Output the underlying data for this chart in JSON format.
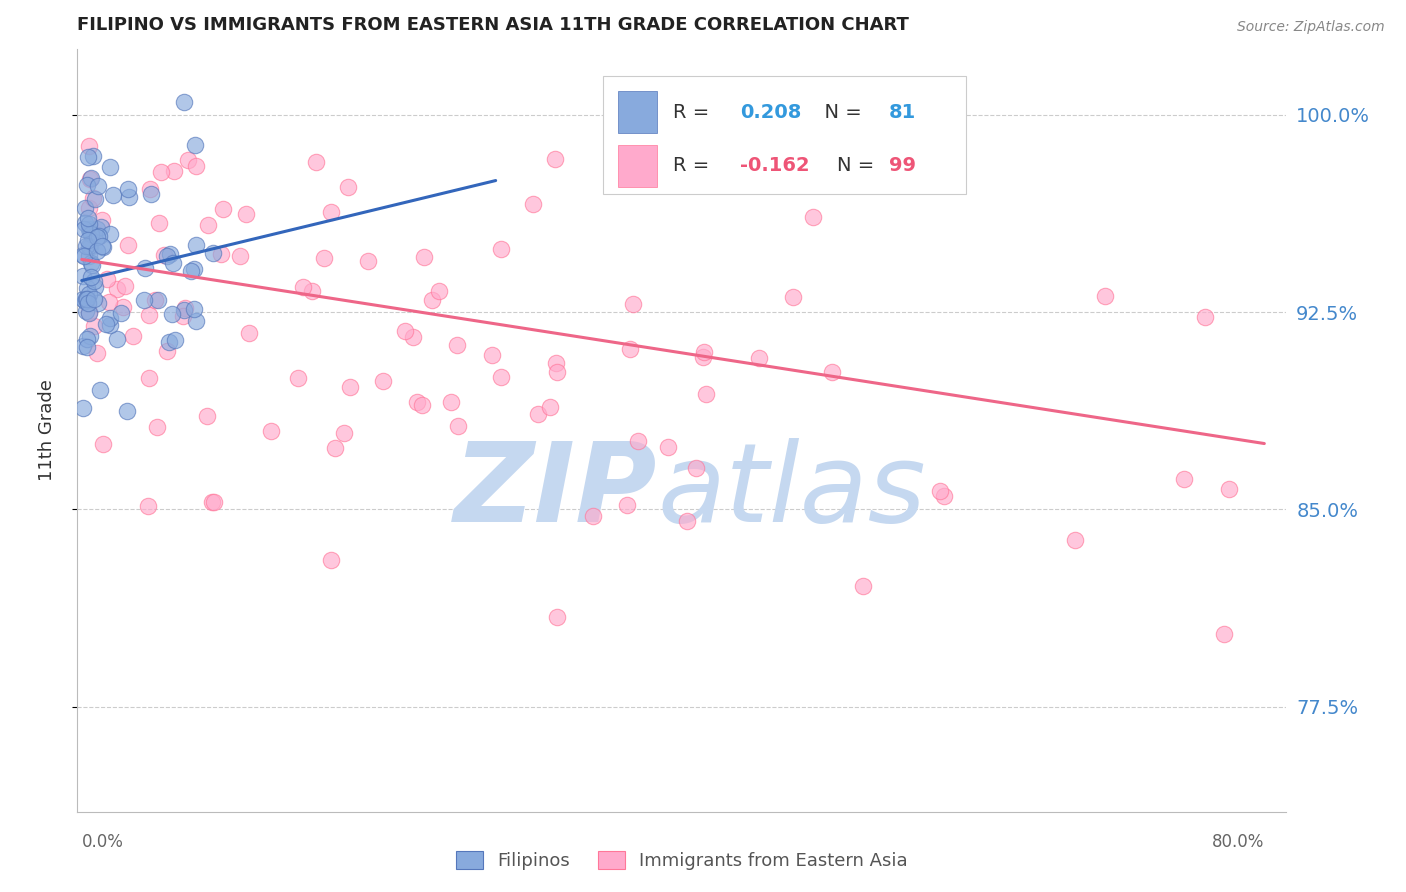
{
  "title": "FILIPINO VS IMMIGRANTS FROM EASTERN ASIA 11TH GRADE CORRELATION CHART",
  "source": "Source: ZipAtlas.com",
  "ylabel": "11th Grade",
  "ytick_labels": [
    "77.5%",
    "85.0%",
    "92.5%",
    "100.0%"
  ],
  "ytick_values": [
    0.775,
    0.85,
    0.925,
    1.0
  ],
  "ymin": 0.735,
  "ymax": 1.025,
  "xmin": -0.003,
  "xmax": 0.815,
  "blue_R": 0.208,
  "blue_N": 81,
  "pink_R": -0.162,
  "pink_N": 99,
  "blue_color": "#88AADD",
  "pink_color": "#FFAACC",
  "blue_edge_color": "#5577BB",
  "pink_edge_color": "#FF7799",
  "blue_line_color": "#3366BB",
  "pink_line_color": "#EE6688",
  "watermark_zip_color": "#C5D8F0",
  "watermark_atlas_color": "#C5D8F0",
  "legend_label_blue": "Filipinos",
  "legend_label_pink": "Immigrants from Eastern Asia",
  "blue_trend_x": [
    0.0,
    0.28
  ],
  "blue_trend_y": [
    0.937,
    0.975
  ],
  "pink_trend_x": [
    0.0,
    0.8
  ],
  "pink_trend_y": [
    0.945,
    0.875
  ]
}
